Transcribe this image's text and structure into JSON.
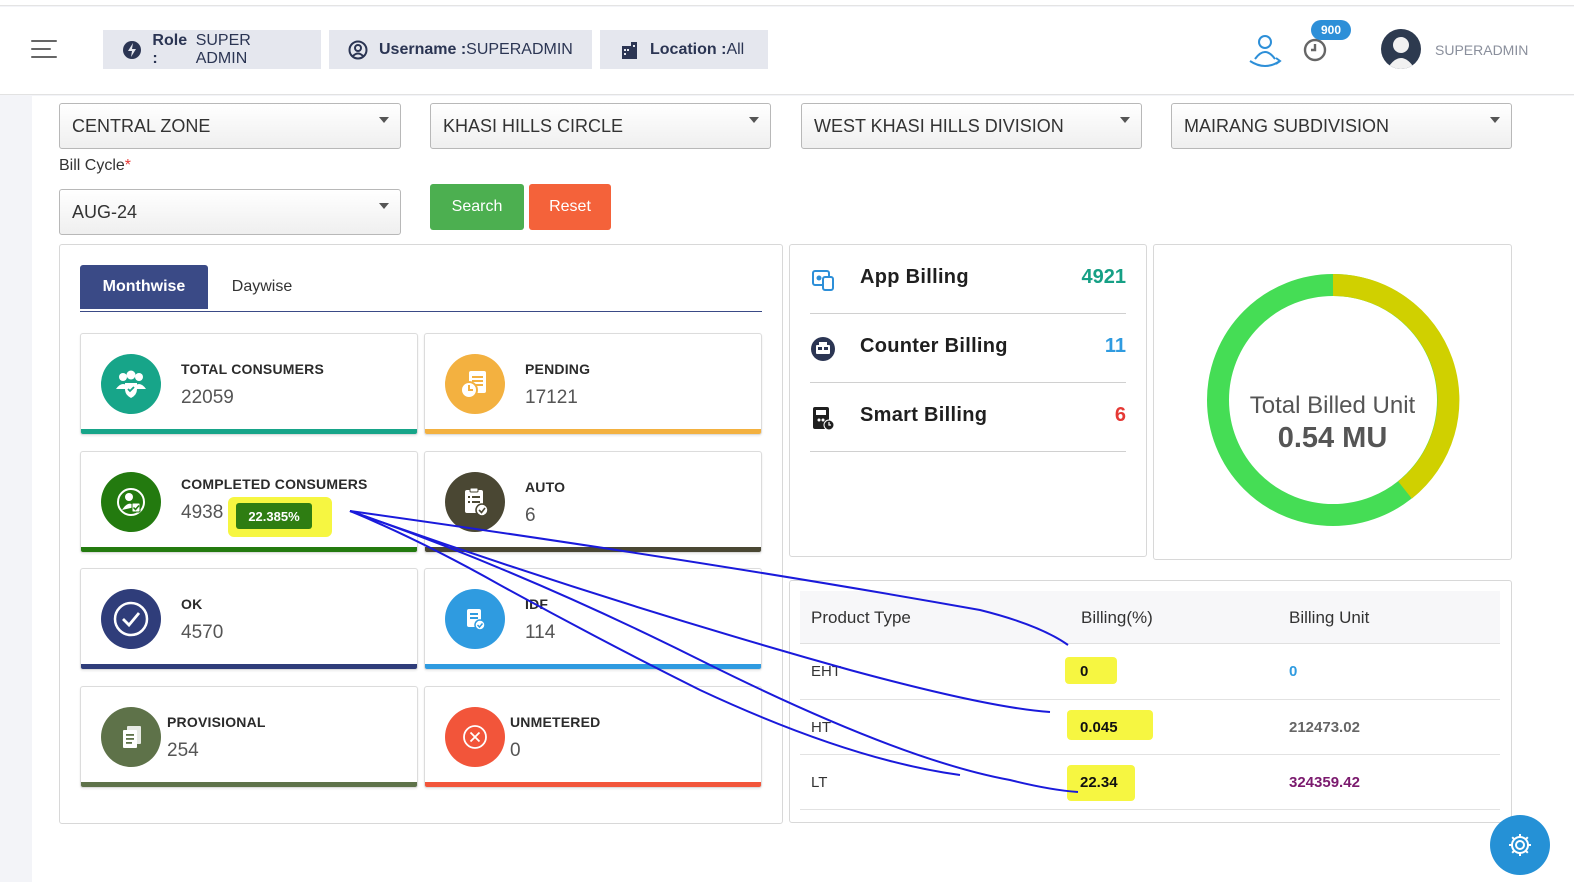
{
  "header": {
    "role_label": "Role :",
    "role_value": "SUPER ADMIN",
    "username_label": "Username :",
    "username_value": "SUPERADMIN",
    "location_label": "Location :",
    "location_value": "All",
    "notification_count": "900",
    "user_display": "SUPERADMIN"
  },
  "filters": {
    "zone": "CENTRAL ZONE",
    "circle": "KHASI HILLS CIRCLE",
    "division": "WEST KHASI HILLS DIVISION",
    "subdivision": "MAIRANG SUBDIVISION",
    "bill_cycle_label": "Bill Cycle",
    "bill_cycle_required": "*",
    "bill_cycle": "AUG-24",
    "search_label": "Search",
    "reset_label": "Reset"
  },
  "tabs": {
    "monthwise": "Monthwise",
    "daywise": "Daywise"
  },
  "cards": {
    "total": {
      "title": "TOTAL CONSUMERS",
      "value": "22059",
      "color": "#17a589"
    },
    "pending": {
      "title": "PENDING",
      "value": "17121",
      "color": "#f3b140"
    },
    "completed": {
      "title": "COMPLETED CONSUMERS",
      "value": "4938",
      "percent": "22.385%",
      "color": "#237a0f"
    },
    "auto": {
      "title": "AUTO",
      "value": "6",
      "color": "#4a4733"
    },
    "ok": {
      "title": "OK",
      "value": "4570",
      "color": "#2f3d7a"
    },
    "idf": {
      "title": "IDF",
      "value": "114",
      "color": "#2f9be0"
    },
    "provisional": {
      "title": "PROVISIONAL",
      "value": "254",
      "color": "#5e7249"
    },
    "unmetered": {
      "title": "UNMETERED",
      "value": "0",
      "color": "#f2553a"
    }
  },
  "billing": {
    "app": {
      "label": "App Billing",
      "value": "4921",
      "color": "#16a085"
    },
    "counter": {
      "label": "Counter Billing",
      "value": "11",
      "color": "#2f9be0"
    },
    "smart": {
      "label": "Smart Billing",
      "value": "6",
      "color": "#e53935"
    }
  },
  "donut": {
    "label": "Total Billed Unit",
    "value": "0.54 MU",
    "colors": [
      "#d0d000",
      "#45dd55"
    ]
  },
  "product_table": {
    "headers": [
      "Product Type",
      "Billing(%)",
      "Billing Unit"
    ],
    "rows": [
      {
        "type": "EHT",
        "billing_pct": "0",
        "billing_unit": "0",
        "unit_color": "#2f9be0"
      },
      {
        "type": "HT",
        "billing_pct": "0.045",
        "billing_unit": "212473.02",
        "unit_color": "#666666"
      },
      {
        "type": "LT",
        "billing_pct": "22.34",
        "billing_unit": "324359.42",
        "unit_color": "#7b1a6e"
      }
    ]
  }
}
